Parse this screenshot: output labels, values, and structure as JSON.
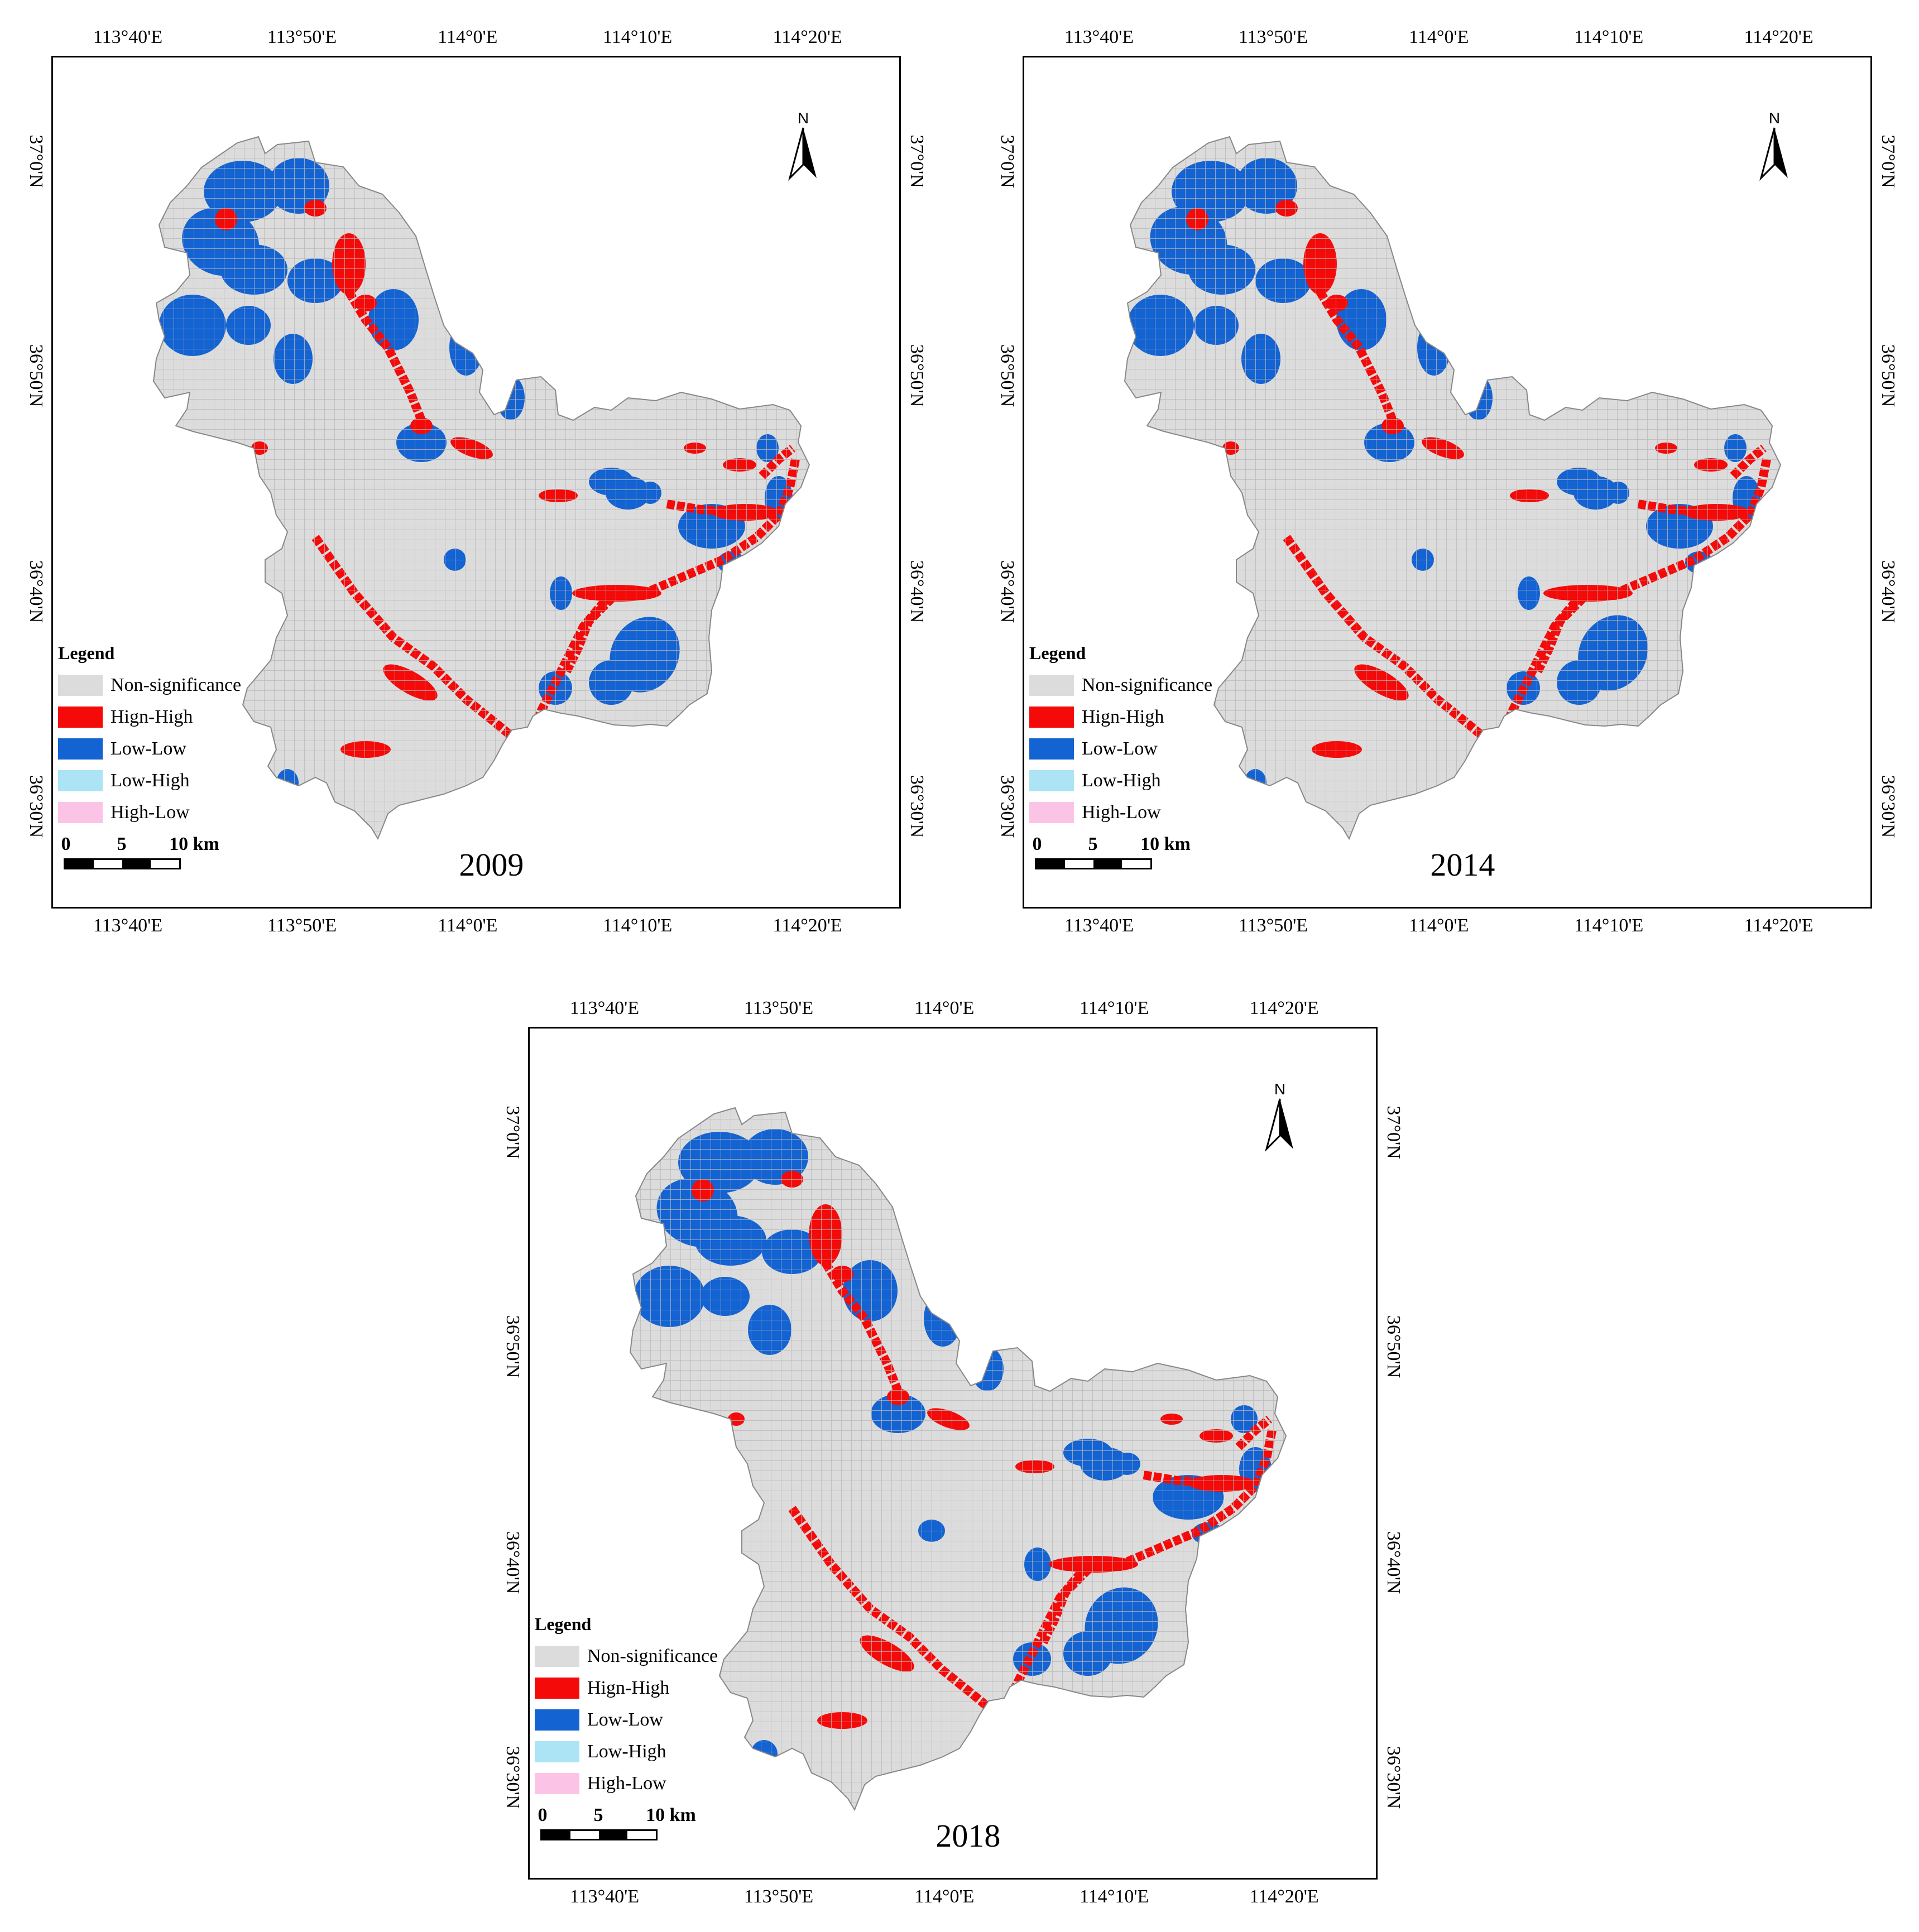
{
  "longitude_labels": [
    "113°40'E",
    "113°50'E",
    "114°0'E",
    "114°10'E",
    "114°20'E"
  ],
  "latitude_labels": [
    "37°0'N",
    "36°50'N",
    "36°40'N",
    "36°30'N"
  ],
  "legend": {
    "title": "Legend",
    "items": [
      {
        "label": "Non-significance",
        "color": "#dcdcdc"
      },
      {
        "label": "Hign-High",
        "color": "#f50a0a"
      },
      {
        "label": "Low-Low",
        "color": "#1463d2"
      },
      {
        "label": "Low-High",
        "color": "#ace4f5"
      },
      {
        "label": "High-Low",
        "color": "#fbc4e6"
      }
    ]
  },
  "scale_bar": {
    "labels": [
      "0",
      "5",
      "10 km"
    ]
  },
  "north_arrow_label": "N",
  "panels": [
    {
      "year": "2009"
    },
    {
      "year": "2014"
    },
    {
      "year": "2018"
    }
  ],
  "colors": {
    "non_significance": "#dcdcdc",
    "high_high": "#f50a0a",
    "low_low": "#1463d2",
    "grid_line": "#b8b8b8"
  }
}
